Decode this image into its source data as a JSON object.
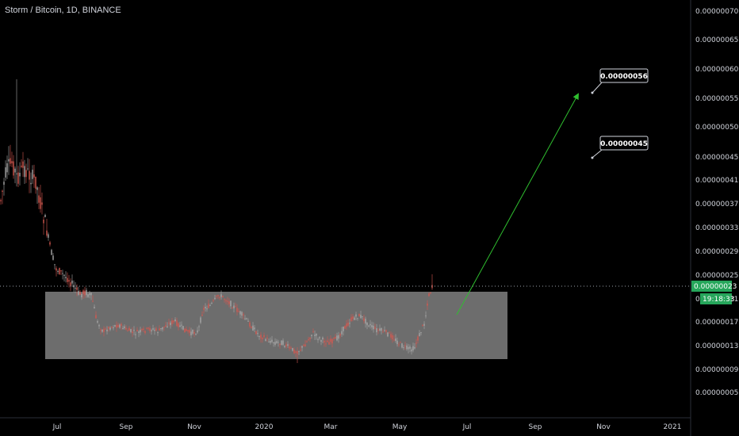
{
  "header": {
    "title": "Storm / Bitcoin, 1D, BINANCE"
  },
  "chart_data": {
    "type": "candlestick",
    "title": "Storm / Bitcoin, 1D, BINANCE",
    "x_ticks": [
      "Jul",
      "Sep",
      "Nov",
      "2020",
      "Mar",
      "May",
      "Jul",
      "Sep",
      "Nov",
      "2021"
    ],
    "y_ticks": [
      "0.00000005",
      "0.00000009",
      "0.00000013",
      "0.00000017",
      "0.00000021",
      "0.00000025",
      "0.00000029",
      "0.00000033",
      "0.00000037",
      "0.00000041",
      "0.00000045",
      "0.00000050",
      "0.00000055",
      "0.00000060",
      "0.00000065",
      "0.00000070"
    ],
    "current_price": "0.00000023",
    "countdown": "19:18:33",
    "annotations": [
      {
        "text": "0.00000056"
      },
      {
        "text": "0.00000045"
      }
    ],
    "range_box": {
      "low": 1e-07,
      "high": 2.2e-07
    },
    "colors": {
      "up": "#a9a9a9",
      "down": "#d5584f",
      "arrow": "#2fbf2f",
      "price_badge": "#26a65b",
      "box": "#808080"
    }
  }
}
